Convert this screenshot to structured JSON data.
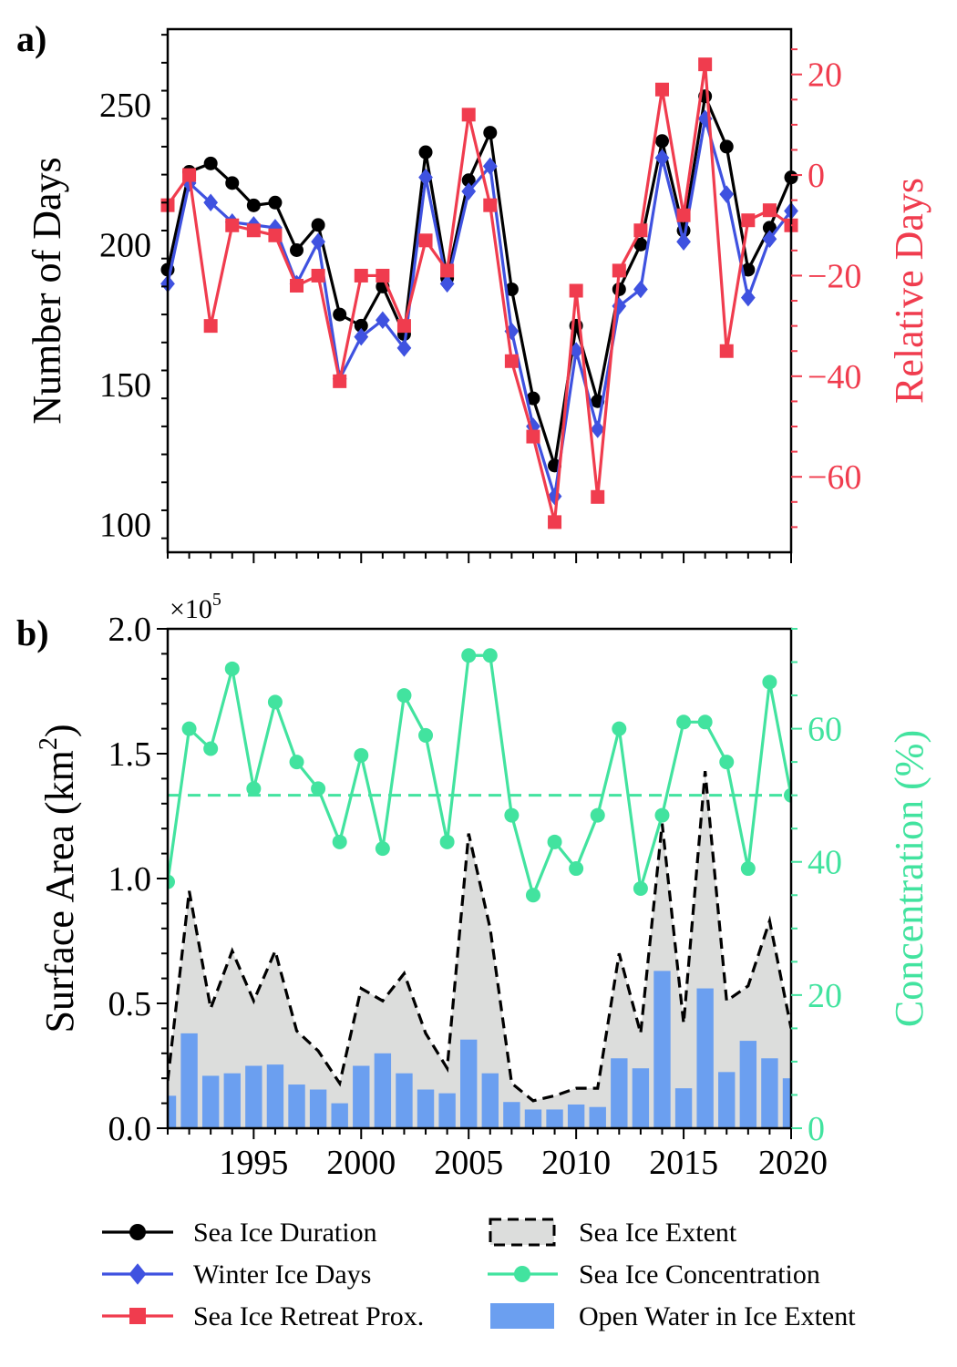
{
  "colors": {
    "duration": "#000000",
    "winter": "#3f52e0",
    "retreat": "#f03c4e",
    "concentration": "#42e39f",
    "extent_fill": "#dcdddc",
    "open_water": "#6b9ff0",
    "axis": "#000000"
  },
  "chart_data": [
    {
      "panel_label": "a)",
      "type": "line",
      "x": [
        1991,
        1992,
        1993,
        1994,
        1995,
        1996,
        1997,
        1998,
        1999,
        2000,
        2001,
        2002,
        2003,
        2004,
        2005,
        2006,
        2007,
        2008,
        2009,
        2010,
        2011,
        2012,
        2013,
        2014,
        2015,
        2016,
        2017,
        2018,
        2019,
        2020
      ],
      "xlim": [
        1991,
        2020
      ],
      "xticks": [
        1995,
        2000,
        2005,
        2010,
        2015,
        2020
      ],
      "ylabel": "Number of Days",
      "ylim": [
        90,
        277
      ],
      "yticks": [
        100,
        150,
        200,
        250
      ],
      "y2label": "Relative Days",
      "y2lim": [
        -75,
        29
      ],
      "y2ticks": [
        -60,
        -40,
        -20,
        0,
        20
      ],
      "series": [
        {
          "name": "Sea Ice Duration",
          "axis": "left",
          "marker": "circle",
          "color_key": "duration",
          "values": [
            191,
            226,
            229,
            222,
            214,
            215,
            198,
            207,
            175,
            171,
            185,
            168,
            233,
            188,
            223,
            240,
            184,
            145,
            121,
            171,
            144,
            184,
            200,
            237,
            205,
            253,
            235,
            191,
            206,
            224
          ]
        },
        {
          "name": "Winter Ice Days",
          "axis": "left",
          "marker": "diamond",
          "color_key": "winter",
          "values": [
            186,
            222,
            215,
            208,
            207,
            206,
            186,
            201,
            152,
            167,
            173,
            163,
            224,
            186,
            219,
            228,
            169,
            135,
            110,
            162,
            134,
            178,
            184,
            231,
            201,
            245,
            218,
            181,
            202,
            212
          ]
        },
        {
          "name": "Sea Ice Retreat Prox.",
          "axis": "right",
          "marker": "square",
          "color_key": "retreat",
          "values": [
            -6,
            0,
            -30,
            -10,
            -11,
            -12,
            -22,
            -20,
            -41,
            -20,
            -20,
            -30,
            -13,
            -19,
            12,
            -6,
            -37,
            -52,
            -69,
            -23,
            -64,
            -19,
            -11,
            17,
            -8,
            22,
            -35,
            -9,
            -7,
            -10
          ]
        }
      ]
    },
    {
      "panel_label": "b)",
      "type": "area",
      "x": [
        1991,
        1992,
        1993,
        1994,
        1995,
        1996,
        1997,
        1998,
        1999,
        2000,
        2001,
        2002,
        2003,
        2004,
        2005,
        2006,
        2007,
        2008,
        2009,
        2010,
        2011,
        2012,
        2013,
        2014,
        2015,
        2016,
        2017,
        2018,
        2019,
        2020
      ],
      "xlim": [
        1991,
        2020
      ],
      "xticks": [
        1995,
        2000,
        2005,
        2010,
        2015,
        2020
      ],
      "ylabel": "Surface Area (km",
      "ylabel_sup": "2",
      "ylabel_end": ")",
      "ylim": [
        0,
        2.0
      ],
      "yticks": [
        "0.0",
        "0.5",
        "1.0",
        "1.5",
        "2.0"
      ],
      "scale_label": "×10",
      "scale_exp": "5",
      "y2label": "Concentration (%)",
      "y2lim": [
        0,
        75
      ],
      "y2ticks": [
        0,
        20,
        40,
        60
      ],
      "reference_line": 50,
      "series": [
        {
          "name": "Sea Ice Extent",
          "axis": "left",
          "style": "dashed-area",
          "color_key": "extent_fill",
          "values": [
            0.19,
            0.95,
            0.48,
            0.71,
            0.51,
            0.71,
            0.39,
            0.31,
            0.18,
            0.56,
            0.51,
            0.62,
            0.38,
            0.24,
            1.18,
            0.8,
            0.18,
            0.11,
            0.13,
            0.16,
            0.16,
            0.7,
            0.38,
            1.22,
            0.42,
            1.43,
            0.51,
            0.57,
            0.83,
            0.4
          ]
        },
        {
          "name": "Sea Ice Concentration",
          "axis": "right",
          "marker": "circle",
          "color_key": "concentration",
          "values": [
            37,
            60,
            57,
            69,
            51,
            64,
            55,
            51,
            43,
            56,
            42,
            65,
            59,
            43,
            71,
            71,
            47,
            35,
            43,
            39,
            47,
            60,
            36,
            47,
            61,
            61,
            55,
            39,
            67,
            50
          ]
        },
        {
          "name": "Open Water in Ice Extent",
          "axis": "left",
          "style": "bar",
          "color_key": "open_water",
          "values": [
            0.13,
            0.38,
            0.21,
            0.22,
            0.25,
            0.255,
            0.175,
            0.155,
            0.1,
            0.25,
            0.3,
            0.22,
            0.155,
            0.14,
            0.355,
            0.22,
            0.105,
            0.075,
            0.075,
            0.095,
            0.085,
            0.28,
            0.24,
            0.63,
            0.16,
            0.56,
            0.225,
            0.35,
            0.28,
            0.2
          ]
        }
      ]
    }
  ]
}
